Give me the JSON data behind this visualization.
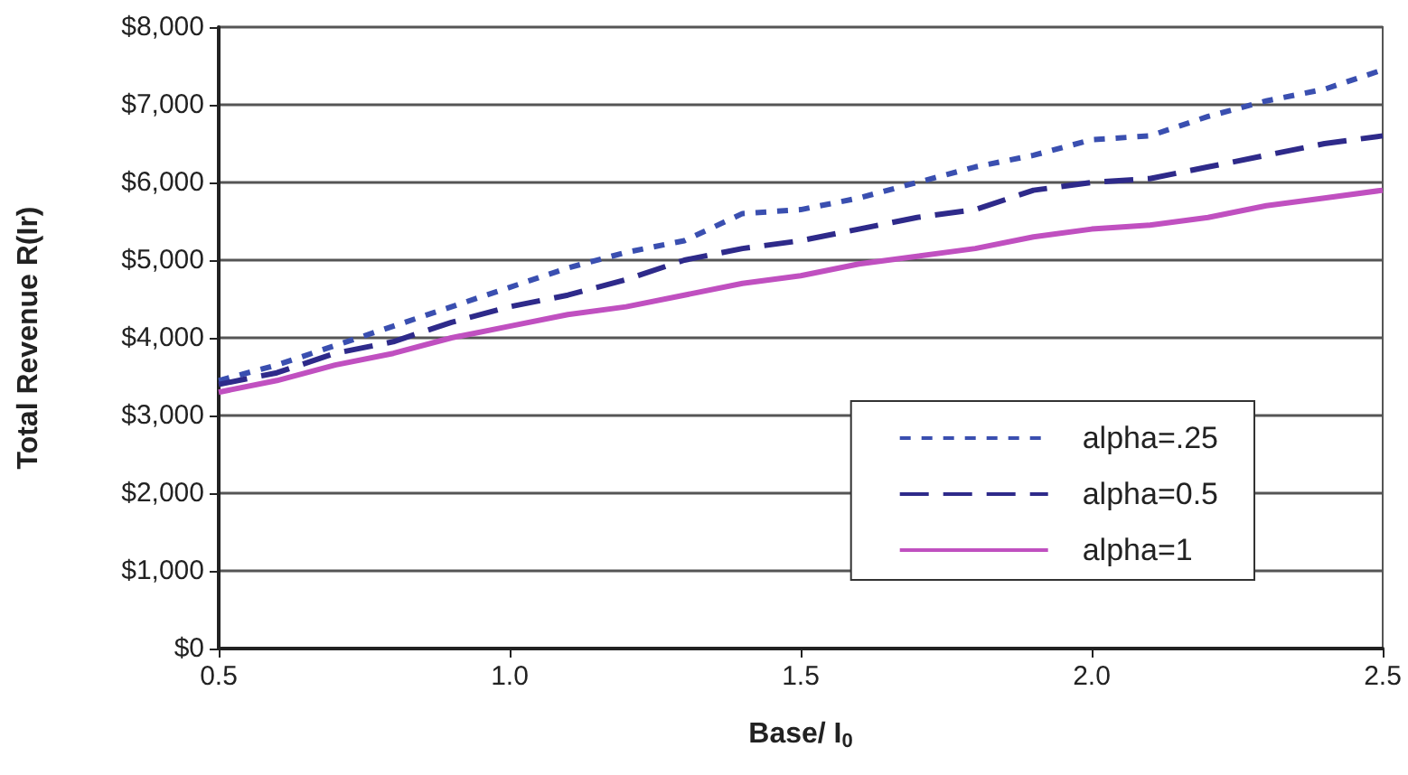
{
  "chart_data": {
    "type": "line",
    "xlabel": "Base/ I$_{0}$",
    "ylabel": "Total Revenue R(Ir)",
    "x": [
      0.5,
      0.6,
      0.7,
      0.8,
      0.9,
      1.0,
      1.1,
      1.2,
      1.3,
      1.4,
      1.5,
      1.6,
      1.7,
      1.8,
      1.9,
      2.0,
      2.1,
      2.2,
      2.3,
      2.4,
      2.5
    ],
    "series": [
      {
        "name": "alpha=.25",
        "color": "#3a4fb0",
        "line_style": "dotted",
        "values": [
          3450,
          3650,
          3900,
          4150,
          4400,
          4650,
          4900,
          5100,
          5250,
          5600,
          5650,
          5800,
          6000,
          6200,
          6350,
          6550,
          6600,
          6850,
          7050,
          7200,
          7450
        ]
      },
      {
        "name": "alpha=0.5",
        "color": "#2e2a8a",
        "line_style": "dashed",
        "values": [
          3400,
          3550,
          3800,
          3950,
          4200,
          4400,
          4550,
          4750,
          5000,
          5150,
          5250,
          5400,
          5550,
          5650,
          5900,
          6000,
          6050,
          6200,
          6350,
          6500,
          6600
        ]
      },
      {
        "name": "alpha=1",
        "color": "#c050c0",
        "line_style": "solid",
        "values": [
          3300,
          3450,
          3650,
          3800,
          4000,
          4150,
          4300,
          4400,
          4550,
          4700,
          4800,
          4950,
          5050,
          5150,
          5300,
          5400,
          5450,
          5550,
          5700,
          5800,
          5900
        ]
      }
    ],
    "xlim": [
      0.5,
      2.5
    ],
    "xticks": [
      {
        "value": 0.5,
        "label": "0.5"
      },
      {
        "value": 1.0,
        "label": "1.0"
      },
      {
        "value": 1.5,
        "label": "1.5"
      },
      {
        "value": 2.0,
        "label": "2.0"
      },
      {
        "value": 2.5,
        "label": "2.5"
      }
    ],
    "ylim": [
      0,
      8000
    ],
    "yticks": [
      {
        "value": 0,
        "label": "$0"
      },
      {
        "value": 1000,
        "label": "$1,000"
      },
      {
        "value": 2000,
        "label": "$2,000"
      },
      {
        "value": 3000,
        "label": "$3,000"
      },
      {
        "value": 4000,
        "label": "$4,000"
      },
      {
        "value": 5000,
        "label": "$5,000"
      },
      {
        "value": 6000,
        "label": "$6,000"
      },
      {
        "value": 7000,
        "label": "$7,000"
      },
      {
        "value": 8000,
        "label": "$8,000"
      }
    ],
    "grid": "y",
    "legend": "bottom right",
    "marker": "none"
  }
}
